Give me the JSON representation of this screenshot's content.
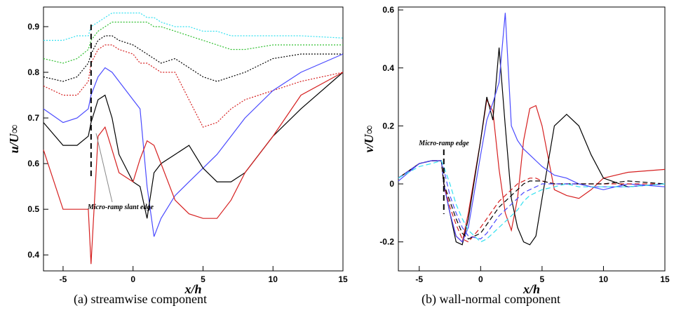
{
  "chart_data": [
    {
      "type": "line",
      "caption": "(a) streamwise component",
      "xlabel": "x/h",
      "ylabel": "u/U∞",
      "annotation": "Micro-ramp slant edge",
      "marker_x": -3,
      "xlim": [
        -6.4,
        15
      ],
      "ylim": [
        0.365,
        0.943
      ],
      "xticks": [
        -5,
        0,
        5,
        10,
        15
      ],
      "yticks": [
        0.4,
        0.5,
        0.6,
        0.7,
        0.8,
        0.9
      ],
      "x": [
        -6.4,
        -5,
        -4,
        -3.2,
        -3,
        -2.5,
        -2,
        -1.5,
        -1,
        0,
        0.5,
        1,
        1.5,
        2,
        3,
        4,
        5,
        6,
        7,
        8,
        10,
        12,
        15
      ],
      "series": [
        {
          "color": "#33e0f0",
          "dash": "dotted",
          "values": [
            0.87,
            0.87,
            0.88,
            0.88,
            0.9,
            0.91,
            0.92,
            0.93,
            0.93,
            0.93,
            0.93,
            0.92,
            0.92,
            0.91,
            0.9,
            0.9,
            0.89,
            0.89,
            0.88,
            0.88,
            0.88,
            0.88,
            0.875
          ]
        },
        {
          "color": "#2fbf2f",
          "dash": "dotted",
          "values": [
            0.83,
            0.82,
            0.83,
            0.85,
            0.87,
            0.89,
            0.9,
            0.91,
            0.91,
            0.91,
            0.91,
            0.91,
            0.9,
            0.9,
            0.89,
            0.88,
            0.87,
            0.86,
            0.85,
            0.85,
            0.86,
            0.86,
            0.86
          ]
        },
        {
          "color": "#000000",
          "dash": "dotted",
          "values": [
            0.79,
            0.78,
            0.79,
            0.82,
            0.84,
            0.87,
            0.88,
            0.88,
            0.87,
            0.86,
            0.85,
            0.84,
            0.83,
            0.82,
            0.83,
            0.81,
            0.79,
            0.78,
            0.79,
            0.8,
            0.83,
            0.84,
            0.84
          ]
        },
        {
          "color": "#d62020",
          "dash": "dotted",
          "values": [
            0.77,
            0.75,
            0.75,
            0.78,
            0.82,
            0.85,
            0.86,
            0.86,
            0.85,
            0.84,
            0.82,
            0.82,
            0.81,
            0.8,
            0.8,
            0.74,
            0.68,
            0.69,
            0.72,
            0.74,
            0.76,
            0.78,
            0.8
          ]
        },
        {
          "color": "#4a4aff",
          "dash": "solid",
          "values": [
            0.72,
            0.69,
            0.7,
            0.72,
            0.75,
            0.79,
            0.81,
            0.8,
            0.78,
            0.74,
            0.72,
            0.55,
            0.44,
            0.48,
            0.53,
            0.56,
            0.59,
            0.62,
            0.66,
            0.7,
            0.76,
            0.8,
            0.84
          ]
        },
        {
          "color": "#000000",
          "dash": "solid",
          "values": [
            0.69,
            0.64,
            0.64,
            0.66,
            0.69,
            0.74,
            0.75,
            0.7,
            0.62,
            0.56,
            0.55,
            0.48,
            0.58,
            0.6,
            0.62,
            0.64,
            0.59,
            0.56,
            0.56,
            0.58,
            0.66,
            0.72,
            0.8
          ]
        },
        {
          "color": "#d62020",
          "dash": "solid",
          "values": [
            0.63,
            0.5,
            0.5,
            0.5,
            0.38,
            0.66,
            0.68,
            0.63,
            0.58,
            0.56,
            0.61,
            0.65,
            0.64,
            0.6,
            0.52,
            0.49,
            0.48,
            0.48,
            0.52,
            0.58,
            0.66,
            0.75,
            0.8
          ]
        }
      ]
    },
    {
      "type": "line",
      "caption": "(b) wall-normal component",
      "xlabel": "x/h",
      "ylabel": "v/U∞",
      "annotation": "Micro-ramp edge",
      "marker_x": -3,
      "xlim": [
        -6.7,
        15
      ],
      "ylim": [
        -0.3,
        0.61
      ],
      "xticks": [
        -5,
        0,
        5,
        10,
        15
      ],
      "yticks": [
        -0.2,
        0,
        0.2,
        0.4,
        0.6
      ],
      "x": [
        -6.7,
        -5,
        -4,
        -3.2,
        -3,
        -2.5,
        -2,
        -1.5,
        -1,
        0,
        0.5,
        1,
        1.5,
        2,
        2.5,
        3,
        3.5,
        4,
        4.5,
        5,
        6,
        7,
        8,
        9,
        10,
        12,
        15
      ],
      "series": [
        {
          "color": "#d62020",
          "dash": "solid",
          "values": [
            0.02,
            0.07,
            0.08,
            0.08,
            0,
            -0.1,
            -0.18,
            -0.2,
            -0.1,
            0.15,
            0.29,
            0.25,
            0.05,
            -0.1,
            -0.16,
            -0.05,
            0.15,
            0.26,
            0.27,
            0.2,
            -0.02,
            -0.04,
            -0.05,
            -0.02,
            0.02,
            0.04,
            0.05
          ]
        },
        {
          "color": "#000000",
          "dash": "solid",
          "values": [
            0.02,
            0.07,
            0.08,
            0.08,
            0,
            -0.1,
            -0.2,
            -0.21,
            -0.12,
            0.15,
            0.3,
            0.22,
            0.47,
            0.2,
            -0.05,
            -0.15,
            -0.2,
            -0.21,
            -0.18,
            -0.05,
            0.2,
            0.24,
            0.2,
            0.1,
            0.02,
            -0.01,
            0
          ]
        },
        {
          "color": "#4a4aff",
          "dash": "solid",
          "values": [
            0.01,
            0.07,
            0.08,
            0.08,
            0,
            -0.1,
            -0.18,
            -0.2,
            -0.15,
            0.1,
            0.22,
            0.28,
            0.35,
            0.59,
            0.2,
            0.15,
            0.12,
            0.1,
            0.08,
            0.06,
            0.03,
            0.02,
            0,
            -0.01,
            -0.02,
            0,
            -0.01
          ]
        },
        {
          "color": "#d62020",
          "dash": "dashed",
          "values": [
            0.02,
            0.07,
            0.08,
            0.08,
            0,
            -0.08,
            -0.14,
            -0.19,
            -0.2,
            -0.15,
            -0.12,
            -0.09,
            -0.06,
            -0.04,
            -0.02,
            0,
            0.01,
            0.02,
            0.02,
            0.01,
            0,
            0,
            0,
            0,
            0,
            0,
            0
          ]
        },
        {
          "color": "#000000",
          "dash": "dashed",
          "values": [
            0.02,
            0.07,
            0.08,
            0.08,
            0,
            -0.06,
            -0.12,
            -0.17,
            -0.19,
            -0.17,
            -0.14,
            -0.11,
            -0.08,
            -0.06,
            -0.04,
            -0.02,
            0,
            0.01,
            0.01,
            0.01,
            0,
            0,
            0,
            0,
            0,
            0.01,
            0
          ]
        },
        {
          "color": "#4a4aff",
          "dash": "dashed",
          "values": [
            0.02,
            0.07,
            0.08,
            0.08,
            0.05,
            -0.04,
            -0.1,
            -0.15,
            -0.18,
            -0.19,
            -0.17,
            -0.14,
            -0.11,
            -0.09,
            -0.07,
            -0.05,
            -0.03,
            -0.02,
            -0.01,
            0,
            0,
            0,
            0,
            -0.01,
            -0.01,
            -0.01,
            0
          ]
        },
        {
          "color": "#33e0f0",
          "dash": "dashed",
          "values": [
            0.02,
            0.06,
            0.07,
            0.08,
            0.06,
            0,
            -0.07,
            -0.12,
            -0.16,
            -0.2,
            -0.19,
            -0.17,
            -0.15,
            -0.13,
            -0.11,
            -0.09,
            -0.06,
            -0.04,
            -0.03,
            -0.02,
            -0.01,
            0,
            -0.01,
            -0.01,
            -0.01,
            -0.01,
            0
          ]
        }
      ]
    }
  ]
}
